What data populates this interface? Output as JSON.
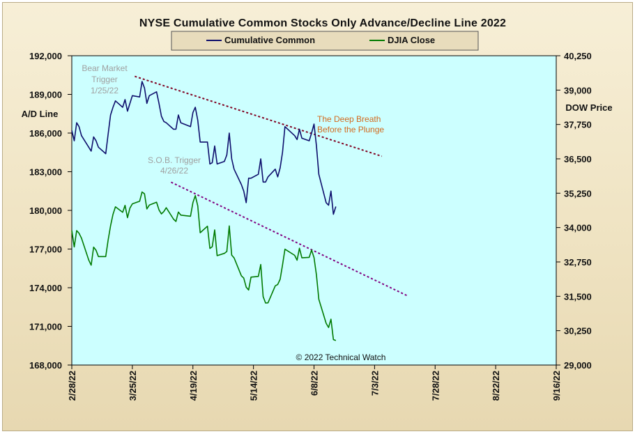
{
  "chart_data": {
    "type": "line",
    "title": "NYSE Cumulative  Common Stocks Only Advance/Decline  Line 2022",
    "ylabel_left": "A/D Line",
    "ylabel_right": "DOW  Price",
    "ylim_left": [
      168000,
      192000
    ],
    "ylim_right": [
      29000,
      40250
    ],
    "yticks_left": [
      "192,000",
      "189,000",
      "186,000",
      "183,000",
      "180,000",
      "177,000",
      "174,000",
      "171,000",
      "168,000"
    ],
    "yticks_right": [
      "40,250",
      "39,000",
      "37,750",
      "36,500",
      "35,250",
      "34,000",
      "32,750",
      "31,500",
      "30,250",
      "29,000"
    ],
    "x_range": [
      "2022-02-28",
      "2022-09-16"
    ],
    "xticks": [
      "2/28/22",
      "3/25/22",
      "4/19/22",
      "5/14/22",
      "6/8/22",
      "7/3/22",
      "7/28/22",
      "8/22/22",
      "9/16/22"
    ],
    "xtick_dates": [
      "2022-02-28",
      "2022-03-25",
      "2022-04-19",
      "2022-05-14",
      "2022-06-08",
      "2022-07-03",
      "2022-07-28",
      "2022-08-22",
      "2022-09-16"
    ],
    "background": "#ccffff",
    "grid": false,
    "legend_position": "top-center",
    "series": [
      {
        "name": "Cumulative Common",
        "color": "#0d0d6b",
        "axis": "left",
        "points": [
          [
            "2022-02-28",
            186.2
          ],
          [
            "2022-03-01",
            185.4
          ],
          [
            "2022-03-02",
            186.8
          ],
          [
            "2022-03-03",
            186.5
          ],
          [
            "2022-03-04",
            185.8
          ],
          [
            "2022-03-07",
            184.9
          ],
          [
            "2022-03-08",
            184.6
          ],
          [
            "2022-03-09",
            185.7
          ],
          [
            "2022-03-10",
            185.4
          ],
          [
            "2022-03-11",
            184.9
          ],
          [
            "2022-03-14",
            184.4
          ],
          [
            "2022-03-15",
            185.9
          ],
          [
            "2022-03-16",
            187.4
          ],
          [
            "2022-03-17",
            188.0
          ],
          [
            "2022-03-18",
            188.5
          ],
          [
            "2022-03-21",
            188.0
          ],
          [
            "2022-03-22",
            188.6
          ],
          [
            "2022-03-23",
            187.7
          ],
          [
            "2022-03-24",
            188.3
          ],
          [
            "2022-03-25",
            188.9
          ],
          [
            "2022-03-28",
            188.8
          ],
          [
            "2022-03-29",
            190.0
          ],
          [
            "2022-03-30",
            189.5
          ],
          [
            "2022-03-31",
            188.3
          ],
          [
            "2022-04-01",
            188.9
          ],
          [
            "2022-04-04",
            189.2
          ],
          [
            "2022-04-05",
            188.3
          ],
          [
            "2022-04-06",
            187.3
          ],
          [
            "2022-04-07",
            186.9
          ],
          [
            "2022-04-08",
            186.8
          ],
          [
            "2022-04-11",
            186.3
          ],
          [
            "2022-04-12",
            186.3
          ],
          [
            "2022-04-13",
            187.4
          ],
          [
            "2022-04-14",
            186.8
          ],
          [
            "2022-04-18",
            186.5
          ],
          [
            "2022-04-19",
            187.6
          ],
          [
            "2022-04-20",
            188.0
          ],
          [
            "2022-04-21",
            187.0
          ],
          [
            "2022-04-22",
            185.3
          ],
          [
            "2022-04-25",
            185.3
          ],
          [
            "2022-04-26",
            183.6
          ],
          [
            "2022-04-27",
            183.7
          ],
          [
            "2022-04-28",
            185.0
          ],
          [
            "2022-04-29",
            183.6
          ],
          [
            "2022-05-02",
            183.8
          ],
          [
            "2022-05-03",
            184.3
          ],
          [
            "2022-05-04",
            186.0
          ],
          [
            "2022-05-05",
            184.0
          ],
          [
            "2022-05-06",
            183.2
          ],
          [
            "2022-05-09",
            182.0
          ],
          [
            "2022-05-10",
            181.5
          ],
          [
            "2022-05-11",
            180.6
          ],
          [
            "2022-05-12",
            182.5
          ],
          [
            "2022-05-13",
            182.5
          ],
          [
            "2022-05-16",
            182.8
          ],
          [
            "2022-05-17",
            184.0
          ],
          [
            "2022-05-18",
            182.2
          ],
          [
            "2022-05-19",
            182.2
          ],
          [
            "2022-05-20",
            182.6
          ],
          [
            "2022-05-23",
            183.2
          ],
          [
            "2022-05-24",
            182.6
          ],
          [
            "2022-05-25",
            183.3
          ],
          [
            "2022-05-26",
            184.5
          ],
          [
            "2022-05-27",
            186.5
          ],
          [
            "2022-05-31",
            185.8
          ],
          [
            "2022-06-01",
            185.5
          ],
          [
            "2022-06-02",
            186.3
          ],
          [
            "2022-06-03",
            185.6
          ],
          [
            "2022-06-06",
            185.4
          ],
          [
            "2022-06-07",
            186.0
          ],
          [
            "2022-06-08",
            186.7
          ],
          [
            "2022-06-09",
            185.0
          ],
          [
            "2022-06-10",
            182.8
          ],
          [
            "2022-06-13",
            180.6
          ],
          [
            "2022-06-14",
            180.4
          ],
          [
            "2022-06-15",
            181.5
          ],
          [
            "2022-06-16",
            179.7
          ],
          [
            "2022-06-17",
            180.3
          ]
        ]
      },
      {
        "name": "DJIA Close",
        "color": "#007a00",
        "axis": "right",
        "points": [
          [
            "2022-02-28",
            33893
          ],
          [
            "2022-03-01",
            33294
          ],
          [
            "2022-03-02",
            33891
          ],
          [
            "2022-03-03",
            33795
          ],
          [
            "2022-03-04",
            33614
          ],
          [
            "2022-03-07",
            32818
          ],
          [
            "2022-03-08",
            32632
          ],
          [
            "2022-03-09",
            33286
          ],
          [
            "2022-03-10",
            33174
          ],
          [
            "2022-03-11",
            32944
          ],
          [
            "2022-03-14",
            32945
          ],
          [
            "2022-03-15",
            33544
          ],
          [
            "2022-03-16",
            34063
          ],
          [
            "2022-03-17",
            34481
          ],
          [
            "2022-03-18",
            34755
          ],
          [
            "2022-03-21",
            34553
          ],
          [
            "2022-03-22",
            34808
          ],
          [
            "2022-03-23",
            34359
          ],
          [
            "2022-03-24",
            34708
          ],
          [
            "2022-03-25",
            34862
          ],
          [
            "2022-03-28",
            34956
          ],
          [
            "2022-03-29",
            35294
          ],
          [
            "2022-03-30",
            35229
          ],
          [
            "2022-03-31",
            34678
          ],
          [
            "2022-04-01",
            34818
          ],
          [
            "2022-04-04",
            34922
          ],
          [
            "2022-04-05",
            34642
          ],
          [
            "2022-04-06",
            34497
          ],
          [
            "2022-04-07",
            34584
          ],
          [
            "2022-04-08",
            34721
          ],
          [
            "2022-04-11",
            34309
          ],
          [
            "2022-04-12",
            34221
          ],
          [
            "2022-04-13",
            34565
          ],
          [
            "2022-04-14",
            34452
          ],
          [
            "2022-04-18",
            34412
          ],
          [
            "2022-04-19",
            34912
          ],
          [
            "2022-04-20",
            35161
          ],
          [
            "2022-04-21",
            34793
          ],
          [
            "2022-04-22",
            33812
          ],
          [
            "2022-04-25",
            34050
          ],
          [
            "2022-04-26",
            33241
          ],
          [
            "2022-04-27",
            33302
          ],
          [
            "2022-04-28",
            33916
          ],
          [
            "2022-04-29",
            32977
          ],
          [
            "2022-05-02",
            33062
          ],
          [
            "2022-05-03",
            33129
          ],
          [
            "2022-05-04",
            34061
          ],
          [
            "2022-05-05",
            32998
          ],
          [
            "2022-05-06",
            32899
          ],
          [
            "2022-05-09",
            32246
          ],
          [
            "2022-05-10",
            32161
          ],
          [
            "2022-05-11",
            31834
          ],
          [
            "2022-05-12",
            31730
          ],
          [
            "2022-05-13",
            32197
          ],
          [
            "2022-05-16",
            32223
          ],
          [
            "2022-05-17",
            32655
          ],
          [
            "2022-05-18",
            31490
          ],
          [
            "2022-05-19",
            31254
          ],
          [
            "2022-05-20",
            31262
          ],
          [
            "2022-05-23",
            31880
          ],
          [
            "2022-05-24",
            31929
          ],
          [
            "2022-05-25",
            32120
          ],
          [
            "2022-05-26",
            32637
          ],
          [
            "2022-05-27",
            33213
          ],
          [
            "2022-05-31",
            32990
          ],
          [
            "2022-06-01",
            32813
          ],
          [
            "2022-06-02",
            33248
          ],
          [
            "2022-06-03",
            32900
          ],
          [
            "2022-06-06",
            32916
          ],
          [
            "2022-06-07",
            33180
          ],
          [
            "2022-06-08",
            32910
          ],
          [
            "2022-06-09",
            32272
          ],
          [
            "2022-06-10",
            31393
          ],
          [
            "2022-06-13",
            30517
          ],
          [
            "2022-06-14",
            30365
          ],
          [
            "2022-06-15",
            30668
          ],
          [
            "2022-06-16",
            29927
          ],
          [
            "2022-06-17",
            29889
          ]
        ]
      }
    ],
    "trendlines": [
      {
        "axis": "left",
        "color": "#800020",
        "points": [
          [
            "2022-03-26",
            190.4
          ],
          [
            "2022-07-06",
            184.2
          ]
        ]
      },
      {
        "axis": "right",
        "color": "#800080",
        "points": [
          [
            "2022-04-10",
            35650
          ],
          [
            "2022-07-17",
            31500
          ]
        ]
      }
    ],
    "annotations": [
      {
        "lines": [
          "Bear Market",
          "Trigger",
          "1/25/22"
        ]
      },
      {
        "lines": [
          "S.O.B. Trigger",
          "4/26/22"
        ]
      },
      {
        "lines": [
          "The  Deep Breath",
          "Before the Plunge"
        ]
      },
      {
        "lines": [
          "© 2022 Technical Watch"
        ]
      }
    ]
  }
}
